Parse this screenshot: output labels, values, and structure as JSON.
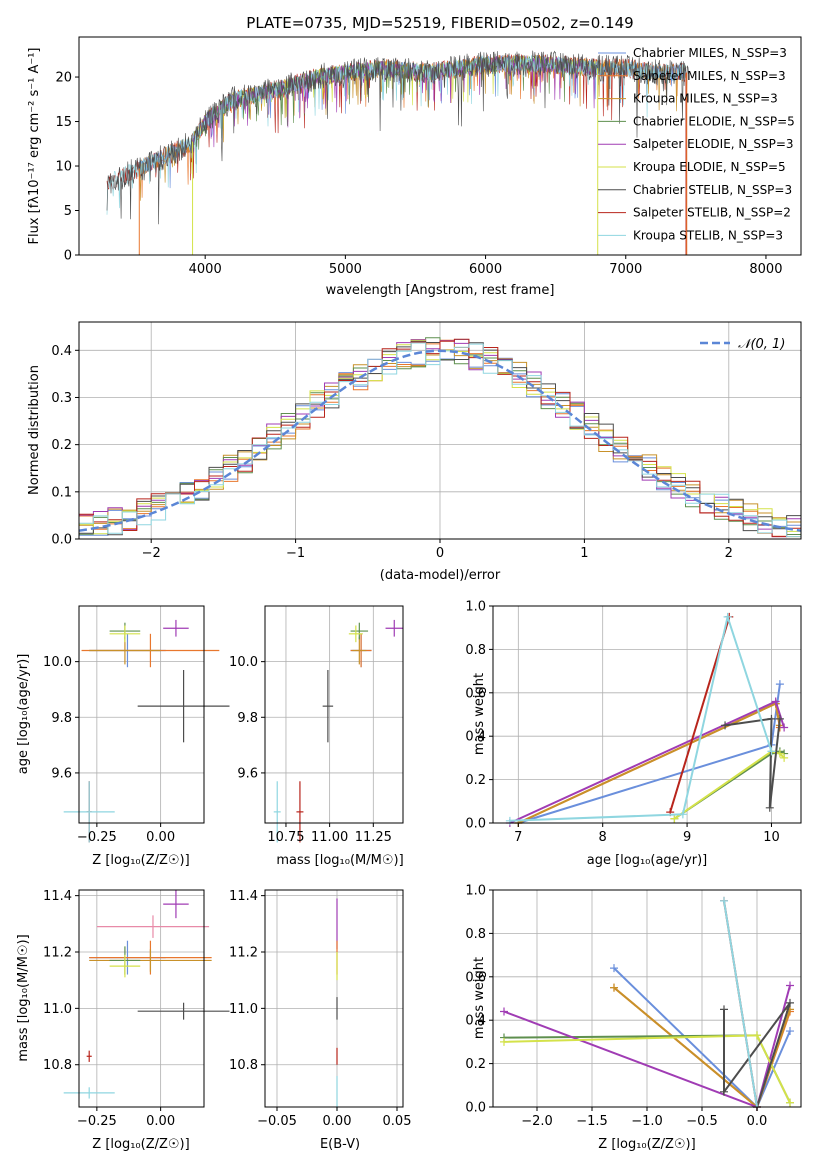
{
  "colors": {
    "chabrier_miles": "#6a8fdc",
    "salpeter_miles": "#e8772e",
    "kroupa_miles": "#c8912a",
    "chabrier_elodie": "#5e8f4e",
    "salpeter_elodie": "#a03cb4",
    "kroupa_elodie": "#d4e24a",
    "chabrier_stelib": "#4d4d4d",
    "salpeter_stelib": "#b8251c",
    "kroupa_stelib": "#8fd6e0",
    "normal_curve": "#5b86d6"
  },
  "chart_data": [
    {
      "id": "spectrum",
      "type": "line",
      "title": "PLATE=0735, MJD=52519, FIBERID=0502, z=0.149",
      "xlabel": "wavelength [Angstrom, rest frame]",
      "ylabel": "Flux [fλ10⁻¹⁷ erg cm⁻² s⁻¹ A⁻¹]",
      "xlim": [
        3100,
        8250
      ],
      "ylim": [
        0,
        24.5
      ],
      "xticks": [
        "4000",
        "5000",
        "6000",
        "7000",
        "8000"
      ],
      "yticks": [
        "0",
        "5",
        "10",
        "15",
        "20"
      ],
      "legend_position": "top-right",
      "legend": [
        "Chabrier MILES, N_SSP=3",
        "Salpeter MILES, N_SSP=3",
        "Kroupa MILES, N_SSP=3",
        "Chabrier ELODIE, N_SSP=5",
        "Salpeter ELODIE, N_SSP=3",
        "Kroupa ELODIE, N_SSP=5",
        "Chabrier STELIB, N_SSP=3",
        "Salpeter STELIB, N_SSP=2",
        "Kroupa STELIB, N_SSP=3"
      ],
      "continuum": {
        "x": [
          3300,
          3500,
          3700,
          3900,
          4000,
          4200,
          4500,
          4800,
          5000,
          5300,
          5600,
          6000,
          6400,
          6800,
          7000,
          7200,
          7400
        ],
        "y": [
          8,
          9.5,
          11,
          12.5,
          15,
          17.5,
          18.5,
          20,
          20.5,
          21,
          20.5,
          21.5,
          21.5,
          21,
          21,
          20.5,
          20.5
        ]
      },
      "data_range": [
        3300,
        7450
      ],
      "model_ranges": {
        "miles": [
          3530,
          7430
        ],
        "elodie": [
          3910,
          6800
        ],
        "stelib": [
          3300,
          7430
        ]
      }
    },
    {
      "id": "residuals",
      "type": "line",
      "xlabel": "(data-model)/error",
      "ylabel": "Normed distribution",
      "xlim": [
        -2.5,
        2.5
      ],
      "ylim": [
        0,
        0.46
      ],
      "xticks": [
        "−2",
        "−1",
        "0",
        "1",
        "2"
      ],
      "xtick_values": [
        -2,
        -1,
        0,
        1,
        2
      ],
      "yticks": [
        "0.0",
        "0.1",
        "0.2",
        "0.3",
        "0.4"
      ],
      "ytick_values": [
        0,
        0.1,
        0.2,
        0.3,
        0.4
      ],
      "grid": true,
      "legend_position": "top-right",
      "normal_label": "𝒩(0, 1)",
      "bin_width": 0.1
    },
    {
      "id": "age_vs_Z",
      "type": "scatter",
      "xlabel": "Z [log₁₀(Z/Z☉)]",
      "ylabel": "age  [log₁₀(age/yr)]",
      "xlim": [
        -0.32,
        0.17
      ],
      "ylim": [
        9.42,
        10.2
      ],
      "xticks": [
        "−0.25",
        "0.00"
      ],
      "xtick_values": [
        -0.25,
        0.0
      ],
      "yticks": [
        "9.6",
        "9.8",
        "10.0"
      ],
      "ytick_values": [
        9.6,
        9.8,
        10.0
      ],
      "grid": true,
      "points": [
        {
          "x": -0.13,
          "y": 10.04,
          "ex": 0.15,
          "ey": 0.06,
          "color": "chabrier_miles"
        },
        {
          "x": -0.04,
          "y": 10.04,
          "ex": 0.27,
          "ey": 0.06,
          "color": "salpeter_miles"
        },
        {
          "x": -0.14,
          "y": 10.04,
          "ex": 0.14,
          "ey": 0.05,
          "color": "kroupa_miles"
        },
        {
          "x": -0.14,
          "y": 10.11,
          "ex": 0.06,
          "ey": 0.03,
          "color": "chabrier_elodie"
        },
        {
          "x": 0.06,
          "y": 10.12,
          "ex": 0.05,
          "ey": 0.03,
          "color": "salpeter_elodie"
        },
        {
          "x": -0.14,
          "y": 10.1,
          "ex": 0.06,
          "ey": 0.03,
          "color": "kroupa_elodie"
        },
        {
          "x": 0.09,
          "y": 9.84,
          "ex": 0.18,
          "ey": 0.13,
          "color": "chabrier_stelib"
        },
        {
          "x": -0.28,
          "y": 9.46,
          "ex": 0.01,
          "ey": 0.11,
          "color": "salpeter_stelib"
        },
        {
          "x": -0.28,
          "y": 9.46,
          "ex": 0.1,
          "ey": 0.11,
          "color": "kroupa_stelib"
        }
      ]
    },
    {
      "id": "age_vs_mass",
      "type": "scatter",
      "xlabel": "mass [log₁₀(M/M☉)]",
      "ylabel": "",
      "xlim": [
        10.63,
        11.42
      ],
      "ylim": [
        9.42,
        10.2
      ],
      "xticks": [
        "10.75",
        "11.00",
        "11.25"
      ],
      "xtick_values": [
        10.75,
        11.0,
        11.25
      ],
      "yticks": [
        "9.6",
        "9.8",
        "10.0"
      ],
      "ytick_values": [
        9.6,
        9.8,
        10.0
      ],
      "grid": true,
      "points": [
        {
          "x": 11.18,
          "y": 10.04,
          "ex": 0.06,
          "ey": 0.06,
          "color": "chabrier_miles"
        },
        {
          "x": 11.18,
          "y": 10.04,
          "ex": 0.06,
          "ey": 0.06,
          "color": "salpeter_miles"
        },
        {
          "x": 11.17,
          "y": 10.04,
          "ex": 0.04,
          "ey": 0.05,
          "color": "kroupa_miles"
        },
        {
          "x": 11.17,
          "y": 10.11,
          "ex": 0.05,
          "ey": 0.03,
          "color": "chabrier_elodie"
        },
        {
          "x": 11.37,
          "y": 10.12,
          "ex": 0.05,
          "ey": 0.03,
          "color": "salpeter_elodie"
        },
        {
          "x": 11.15,
          "y": 10.1,
          "ex": 0.04,
          "ey": 0.03,
          "color": "kroupa_elodie"
        },
        {
          "x": 10.99,
          "y": 9.84,
          "ex": 0.03,
          "ey": 0.13,
          "color": "chabrier_stelib"
        },
        {
          "x": 10.83,
          "y": 9.46,
          "ex": 0.02,
          "ey": 0.11,
          "color": "salpeter_stelib"
        },
        {
          "x": 10.7,
          "y": 9.46,
          "ex": 0.02,
          "ey": 0.11,
          "color": "kroupa_stelib"
        }
      ]
    },
    {
      "id": "massweight_vs_age",
      "type": "line",
      "xlabel": "age  [log₁₀(age/yr)]",
      "ylabel": "mass weight",
      "xlim": [
        6.7,
        10.35
      ],
      "ylim": [
        0,
        1.0
      ],
      "xticks": [
        "7",
        "8",
        "9",
        "10"
      ],
      "xtick_values": [
        7,
        8,
        9,
        10
      ],
      "yticks": [
        "0.0",
        "0.2",
        "0.4",
        "0.6",
        "0.8",
        "1.0"
      ],
      "ytick_values": [
        0,
        0.2,
        0.4,
        0.6,
        0.8,
        1.0
      ],
      "grid": true,
      "series": [
        {
          "color": "chabrier_miles",
          "x": [
            7.0,
            10.0,
            10.1
          ],
          "y": [
            0.0,
            0.36,
            0.64
          ]
        },
        {
          "color": "salpeter_miles",
          "x": [
            7.0,
            10.05,
            10.1
          ],
          "y": [
            0.0,
            0.55,
            0.44
          ]
        },
        {
          "color": "kroupa_miles",
          "x": [
            7.0,
            10.05,
            10.1
          ],
          "y": [
            0.0,
            0.55,
            0.45
          ]
        },
        {
          "color": "chabrier_elodie",
          "x": [
            8.85,
            10.0,
            10.1,
            10.15
          ],
          "y": [
            0.02,
            0.32,
            0.33,
            0.32
          ]
        },
        {
          "color": "salpeter_elodie",
          "x": [
            6.9,
            10.05,
            10.15
          ],
          "y": [
            0.0,
            0.56,
            0.44
          ]
        },
        {
          "color": "kroupa_elodie",
          "x": [
            8.85,
            10.0,
            10.1,
            10.15
          ],
          "y": [
            0.02,
            0.33,
            0.32,
            0.3
          ]
        },
        {
          "color": "chabrier_stelib",
          "x": [
            9.45,
            10.0,
            9.98,
            10.1
          ],
          "y": [
            0.45,
            0.48,
            0.07,
            0.48
          ]
        },
        {
          "color": "salpeter_stelib",
          "x": [
            8.8,
            9.5
          ],
          "y": [
            0.05,
            0.95
          ]
        },
        {
          "color": "kroupa_stelib",
          "x": [
            6.9,
            8.95,
            9.48,
            10.0
          ],
          "y": [
            0.01,
            0.04,
            0.95,
            0.33
          ]
        }
      ]
    },
    {
      "id": "mass_vs_Z",
      "type": "scatter",
      "xlabel": "Z [log₁₀(Z/Z☉)]",
      "ylabel": "mass [log₁₀(M/M☉)]",
      "xlim": [
        -0.32,
        0.17
      ],
      "ylim": [
        10.65,
        11.42
      ],
      "xticks": [
        "−0.25",
        "0.00"
      ],
      "xtick_values": [
        -0.25,
        0.0
      ],
      "yticks": [
        "10.8",
        "11.0",
        "11.2",
        "11.4"
      ],
      "ytick_values": [
        10.8,
        11.0,
        11.2,
        11.4
      ],
      "grid": true,
      "points": [
        {
          "x": -0.13,
          "y": 11.18,
          "ex": 0.15,
          "ey": 0.06,
          "color": "chabrier_miles"
        },
        {
          "x": -0.04,
          "y": 11.18,
          "ex": 0.24,
          "ey": 0.06,
          "color": "salpeter_miles"
        },
        {
          "x": -0.04,
          "y": 11.17,
          "ex": 0.24,
          "ey": 0.04,
          "color": "kroupa_miles"
        },
        {
          "x": -0.14,
          "y": 11.17,
          "ex": 0.06,
          "ey": 0.05,
          "color": "chabrier_elodie"
        },
        {
          "x": 0.06,
          "y": 11.37,
          "ex": 0.05,
          "ey": 0.05,
          "color": "salpeter_elodie"
        },
        {
          "x": -0.14,
          "y": 11.15,
          "ex": 0.06,
          "ey": 0.04,
          "color": "kroupa_elodie"
        },
        {
          "x": 0.09,
          "y": 10.99,
          "ex": 0.18,
          "ey": 0.03,
          "color": "chabrier_stelib"
        },
        {
          "x": -0.28,
          "y": 10.83,
          "ex": 0.01,
          "ey": 0.02,
          "color": "salpeter_stelib"
        },
        {
          "x": -0.28,
          "y": 10.7,
          "ex": 0.1,
          "ey": 0.02,
          "color": "kroupa_stelib"
        },
        {
          "x": -0.03,
          "y": 11.29,
          "ex": 0.22,
          "ey": 0.04,
          "color": "pink"
        }
      ]
    },
    {
      "id": "mass_vs_ebv",
      "type": "scatter",
      "xlabel": "E(B-V)",
      "ylabel": "",
      "xlim": [
        -0.06,
        0.055
      ],
      "ylim": [
        10.65,
        11.42
      ],
      "xticks": [
        "−0.05",
        "0.00",
        "0.05"
      ],
      "xtick_values": [
        -0.05,
        0.0,
        0.05
      ],
      "yticks": [
        "10.8",
        "11.0",
        "11.2",
        "11.4"
      ],
      "ytick_values": [
        10.8,
        11.0,
        11.2,
        11.4
      ],
      "grid": true,
      "points": [
        {
          "x": 0,
          "y": 11.3,
          "ex": 0,
          "ey": 0.09,
          "color": "salpeter_elodie"
        },
        {
          "x": 0,
          "y": 11.18,
          "ex": 0,
          "ey": 0.06,
          "color": "salpeter_miles"
        },
        {
          "x": 0,
          "y": 11.15,
          "ex": 0,
          "ey": 0.05,
          "color": "kroupa_elodie"
        },
        {
          "x": 0,
          "y": 11.0,
          "ex": 0,
          "ey": 0.04,
          "color": "chabrier_stelib"
        },
        {
          "x": 0,
          "y": 10.83,
          "ex": 0,
          "ey": 0.03,
          "color": "salpeter_stelib"
        },
        {
          "x": 0,
          "y": 10.7,
          "ex": 0,
          "ey": 0.06,
          "color": "kroupa_stelib"
        }
      ]
    },
    {
      "id": "massweight_vs_Z",
      "type": "line",
      "xlabel": "Z [log₁₀(Z/Z☉)]",
      "ylabel": "mass weight",
      "xlim": [
        -2.4,
        0.4
      ],
      "ylim": [
        0,
        1.0
      ],
      "xticks": [
        "−2.0",
        "−1.5",
        "−1.0",
        "−0.5",
        "0.0"
      ],
      "xtick_values": [
        -2.0,
        -1.5,
        -1.0,
        -0.5,
        0.0
      ],
      "yticks": [
        "0.0",
        "0.2",
        "0.4",
        "0.6",
        "0.8",
        "1.0"
      ],
      "ytick_values": [
        0,
        0.2,
        0.4,
        0.6,
        0.8,
        1.0
      ],
      "grid": true,
      "series": [
        {
          "color": "chabrier_miles",
          "x": [
            -1.3,
            0.0,
            0.3
          ],
          "y": [
            0.64,
            0.0,
            0.35
          ]
        },
        {
          "color": "salpeter_miles",
          "x": [
            -1.3,
            0.0,
            0.3
          ],
          "y": [
            0.55,
            0.0,
            0.44
          ]
        },
        {
          "color": "kroupa_miles",
          "x": [
            -1.3,
            0.0,
            0.3
          ],
          "y": [
            0.55,
            0.0,
            0.45
          ]
        },
        {
          "color": "chabrier_elodie",
          "x": [
            -2.3,
            0.0,
            0.3
          ],
          "y": [
            0.32,
            0.33,
            0.02
          ]
        },
        {
          "color": "salpeter_elodie",
          "x": [
            -2.3,
            0.0,
            0.3
          ],
          "y": [
            0.44,
            0.0,
            0.56
          ]
        },
        {
          "color": "kroupa_elodie",
          "x": [
            -2.3,
            0.0,
            0.3
          ],
          "y": [
            0.3,
            0.33,
            0.02
          ]
        },
        {
          "color": "chabrier_stelib",
          "x": [
            -0.3,
            -0.3,
            0.3,
            0.0
          ],
          "y": [
            0.45,
            0.07,
            0.48,
            0.0
          ]
        },
        {
          "color": "salpeter_stelib",
          "x": [
            -0.3,
            0.0
          ],
          "y": [
            0.95,
            0.0
          ]
        },
        {
          "color": "kroupa_stelib",
          "x": [
            -0.3,
            0.0
          ],
          "y": [
            0.95,
            0.0
          ]
        }
      ]
    }
  ]
}
